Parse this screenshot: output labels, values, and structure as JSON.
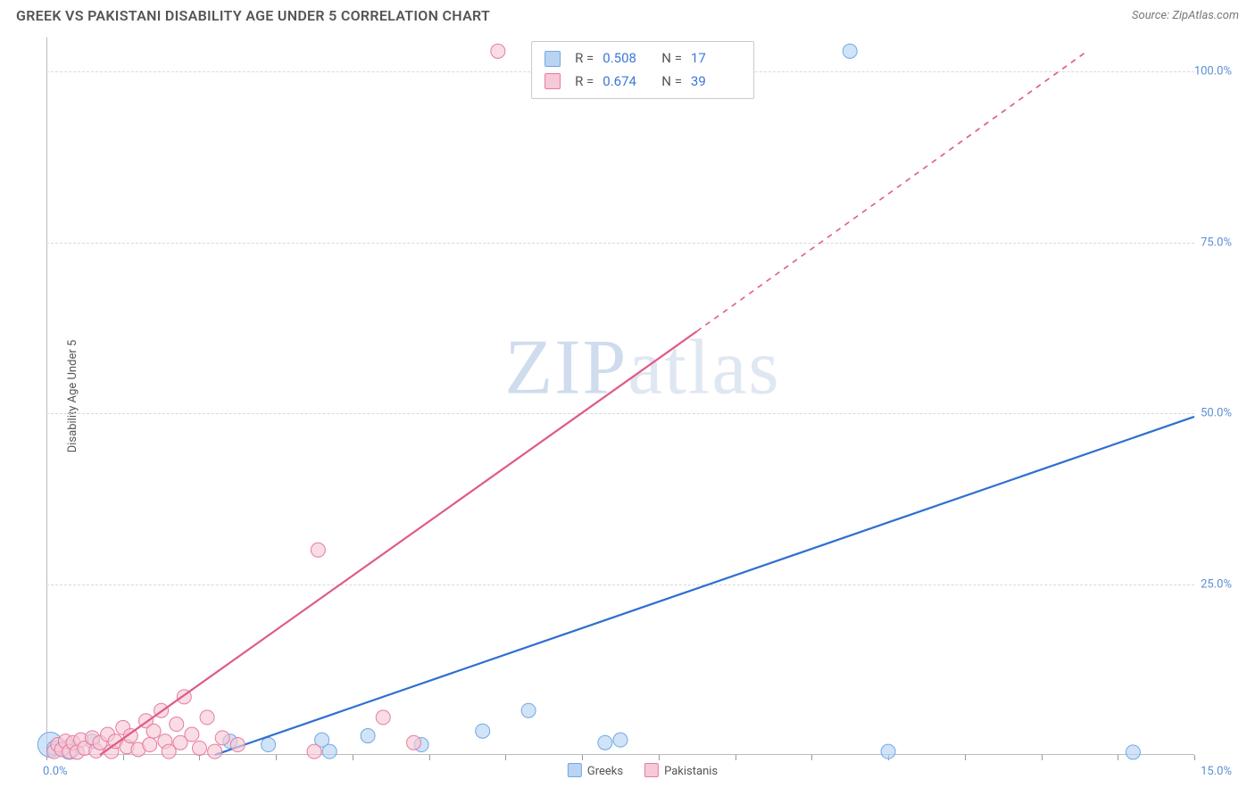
{
  "header": {
    "title": "GREEK VS PAKISTANI DISABILITY AGE UNDER 5 CORRELATION CHART",
    "source_prefix": "Source: ",
    "source": "ZipAtlas.com"
  },
  "chart": {
    "type": "scatter",
    "ylabel": "Disability Age Under 5",
    "xlim": [
      0,
      15
    ],
    "ylim": [
      0,
      105
    ],
    "x_ticks": [
      0,
      1,
      2,
      3,
      4,
      5,
      6,
      7,
      8,
      9,
      10,
      11,
      12,
      13,
      14,
      15
    ],
    "x_tick_labels": {
      "0": "0.0%",
      "15": "15.0%"
    },
    "y_grid": [
      25,
      50,
      75,
      100
    ],
    "y_tick_labels": {
      "25": "25.0%",
      "50": "50.0%",
      "75": "75.0%",
      "100": "100.0%"
    },
    "background_color": "#ffffff",
    "grid_color": "#d9d9d9",
    "grid_dash": "4,4",
    "axis_color": "#bbbbbb",
    "label_color": "#5b8fd6",
    "watermark": "ZIPatlas",
    "series": [
      {
        "name": "Greeks",
        "color_fill": "#b9d4f1",
        "color_stroke": "#6fa8e8",
        "line_color": "#2f6fd0",
        "marker_radius": 8,
        "marker_opacity": 0.65,
        "reg_solid": {
          "x1": 2.2,
          "y1": 0,
          "x2": 15.0,
          "y2": 49.5
        },
        "reg_dashed": null,
        "points": [
          {
            "x": 0.05,
            "y": 1.5,
            "r": 14
          },
          {
            "x": 0.1,
            "y": 1.0
          },
          {
            "x": 0.3,
            "y": 0.8,
            "r": 11
          },
          {
            "x": 0.6,
            "y": 2.0
          },
          {
            "x": 2.4,
            "y": 2.0
          },
          {
            "x": 2.9,
            "y": 1.5
          },
          {
            "x": 3.6,
            "y": 2.2
          },
          {
            "x": 3.7,
            "y": 0.5
          },
          {
            "x": 4.2,
            "y": 2.8
          },
          {
            "x": 4.9,
            "y": 1.5
          },
          {
            "x": 5.7,
            "y": 3.5
          },
          {
            "x": 6.3,
            "y": 6.5
          },
          {
            "x": 7.3,
            "y": 1.8
          },
          {
            "x": 7.5,
            "y": 2.2
          },
          {
            "x": 10.5,
            "y": 103
          },
          {
            "x": 11.0,
            "y": 0.5
          },
          {
            "x": 14.2,
            "y": 0.4
          }
        ]
      },
      {
        "name": "Pakistanis",
        "color_fill": "#f6c9d6",
        "color_stroke": "#e77aa0",
        "line_color": "#e05a86",
        "marker_radius": 8,
        "marker_opacity": 0.65,
        "reg_solid": {
          "x1": 0.7,
          "y1": 0,
          "x2": 8.5,
          "y2": 62
        },
        "reg_dashed": {
          "x1": 8.5,
          "y1": 62,
          "x2": 13.6,
          "y2": 103
        },
        "points": [
          {
            "x": 0.1,
            "y": 0.5
          },
          {
            "x": 0.15,
            "y": 1.5
          },
          {
            "x": 0.2,
            "y": 0.8
          },
          {
            "x": 0.25,
            "y": 2.0
          },
          {
            "x": 0.3,
            "y": 0.5
          },
          {
            "x": 0.35,
            "y": 1.8
          },
          {
            "x": 0.4,
            "y": 0.4
          },
          {
            "x": 0.45,
            "y": 2.2
          },
          {
            "x": 0.5,
            "y": 1.0
          },
          {
            "x": 0.6,
            "y": 2.5
          },
          {
            "x": 0.65,
            "y": 0.6
          },
          {
            "x": 0.7,
            "y": 1.8
          },
          {
            "x": 0.8,
            "y": 3.0
          },
          {
            "x": 0.85,
            "y": 0.5
          },
          {
            "x": 0.9,
            "y": 2.0
          },
          {
            "x": 1.0,
            "y": 4.0
          },
          {
            "x": 1.05,
            "y": 1.2
          },
          {
            "x": 1.1,
            "y": 2.8
          },
          {
            "x": 1.2,
            "y": 0.8
          },
          {
            "x": 1.3,
            "y": 5.0
          },
          {
            "x": 1.35,
            "y": 1.5
          },
          {
            "x": 1.4,
            "y": 3.5
          },
          {
            "x": 1.5,
            "y": 6.5
          },
          {
            "x": 1.55,
            "y": 2.0
          },
          {
            "x": 1.6,
            "y": 0.5
          },
          {
            "x": 1.7,
            "y": 4.5
          },
          {
            "x": 1.75,
            "y": 1.8
          },
          {
            "x": 1.8,
            "y": 8.5
          },
          {
            "x": 1.9,
            "y": 3.0
          },
          {
            "x": 2.0,
            "y": 1.0
          },
          {
            "x": 2.1,
            "y": 5.5
          },
          {
            "x": 2.2,
            "y": 0.5
          },
          {
            "x": 2.3,
            "y": 2.5
          },
          {
            "x": 2.5,
            "y": 1.5
          },
          {
            "x": 3.5,
            "y": 0.5
          },
          {
            "x": 3.55,
            "y": 30
          },
          {
            "x": 4.4,
            "y": 5.5
          },
          {
            "x": 4.8,
            "y": 1.8
          },
          {
            "x": 5.9,
            "y": 103
          }
        ]
      }
    ],
    "stats_box": {
      "rows": [
        {
          "swatch_fill": "#b9d4f1",
          "swatch_stroke": "#6fa8e8",
          "r_label": "R =",
          "r": "0.508",
          "n_label": "N =",
          "n": "17"
        },
        {
          "swatch_fill": "#f6c9d6",
          "swatch_stroke": "#e77aa0",
          "r_label": "R =",
          "r": "0.674",
          "n_label": "N =",
          "n": "39"
        }
      ]
    },
    "legend_bottom": [
      {
        "swatch_fill": "#b9d4f1",
        "swatch_stroke": "#6fa8e8",
        "label": "Greeks"
      },
      {
        "swatch_fill": "#f6c9d6",
        "swatch_stroke": "#e77aa0",
        "label": "Pakistanis"
      }
    ]
  }
}
